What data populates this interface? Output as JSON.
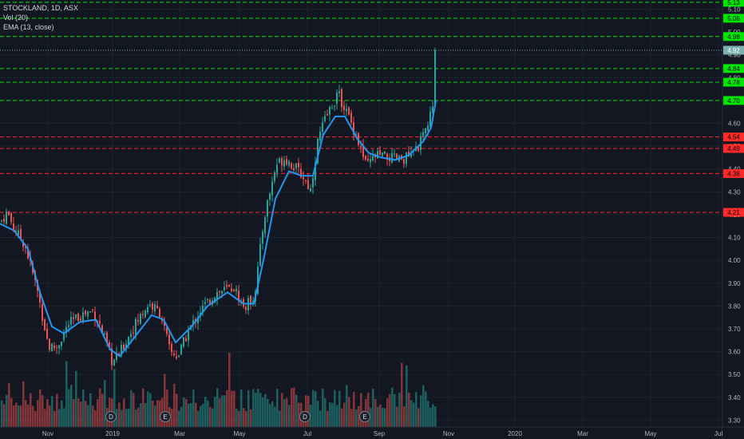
{
  "header": {
    "symbol_line": "STOCKLAND, 1D, ASX",
    "vol_label": "Vol (20)",
    "ema_label": "EMA (13, close)"
  },
  "colors": {
    "background": "#131722",
    "up": "#26a69a",
    "down": "#ef5350",
    "ema": "#2196f3",
    "resistance": "#00e600",
    "support": "#ff2a2a",
    "current": "#7fb0b0"
  },
  "chart_data": {
    "type": "candlestick",
    "ylim": [
      3.27,
      5.14
    ],
    "y_ticks": [
      "3.30",
      "3.40",
      "3.50",
      "3.60",
      "3.70",
      "3.80",
      "3.90",
      "4.00",
      "4.10",
      "4.20",
      "4.30",
      "4.40",
      "4.50",
      "4.60",
      "4.70",
      "4.80",
      "4.90",
      "5.00",
      "5.10"
    ],
    "x_ticks": [
      "Nov",
      "2019",
      "Mar",
      "May",
      "Jul",
      "Sep",
      "Nov",
      "2020",
      "Mar",
      "May",
      "Jul"
    ],
    "resistance_levels": [
      5.13,
      5.06,
      4.98,
      4.84,
      4.78,
      4.7
    ],
    "support_levels": [
      4.54,
      4.49,
      4.38,
      4.21
    ],
    "current_price": 4.92,
    "events": [
      "D",
      "E",
      "D",
      "E"
    ],
    "price_path": [
      [
        0,
        4.17
      ],
      [
        8,
        4.21
      ],
      [
        18,
        4.13
      ],
      [
        30,
        4.07
      ],
      [
        45,
        3.88
      ],
      [
        60,
        3.62
      ],
      [
        70,
        3.62
      ],
      [
        85,
        3.72
      ],
      [
        100,
        3.76
      ],
      [
        115,
        3.78
      ],
      [
        125,
        3.71
      ],
      [
        140,
        3.55
      ],
      [
        150,
        3.6
      ],
      [
        165,
        3.7
      ],
      [
        185,
        3.81
      ],
      [
        200,
        3.77
      ],
      [
        212,
        3.6
      ],
      [
        222,
        3.58
      ],
      [
        235,
        3.69
      ],
      [
        250,
        3.78
      ],
      [
        270,
        3.86
      ],
      [
        292,
        3.88
      ],
      [
        305,
        3.79
      ],
      [
        318,
        3.85
      ],
      [
        330,
        4.19
      ],
      [
        345,
        4.42
      ],
      [
        356,
        4.45
      ],
      [
        370,
        4.4
      ],
      [
        378,
        4.37
      ],
      [
        388,
        4.31
      ],
      [
        398,
        4.54
      ],
      [
        408,
        4.63
      ],
      [
        422,
        4.73
      ],
      [
        432,
        4.66
      ],
      [
        445,
        4.55
      ],
      [
        458,
        4.41
      ],
      [
        470,
        4.46
      ],
      [
        485,
        4.45
      ],
      [
        500,
        4.44
      ],
      [
        515,
        4.46
      ],
      [
        528,
        4.53
      ],
      [
        535,
        4.6
      ],
      [
        541,
        4.67
      ],
      [
        544,
        4.92
      ]
    ],
    "ema_path": [
      [
        0,
        4.16
      ],
      [
        18,
        4.13
      ],
      [
        35,
        4.05
      ],
      [
        50,
        3.86
      ],
      [
        65,
        3.71
      ],
      [
        80,
        3.68
      ],
      [
        100,
        3.73
      ],
      [
        120,
        3.74
      ],
      [
        138,
        3.61
      ],
      [
        150,
        3.58
      ],
      [
        170,
        3.67
      ],
      [
        190,
        3.76
      ],
      [
        205,
        3.74
      ],
      [
        220,
        3.64
      ],
      [
        240,
        3.71
      ],
      [
        260,
        3.8
      ],
      [
        285,
        3.86
      ],
      [
        305,
        3.81
      ],
      [
        318,
        3.81
      ],
      [
        330,
        4.0
      ],
      [
        345,
        4.27
      ],
      [
        362,
        4.39
      ],
      [
        378,
        4.37
      ],
      [
        392,
        4.37
      ],
      [
        405,
        4.55
      ],
      [
        420,
        4.63
      ],
      [
        432,
        4.63
      ],
      [
        448,
        4.53
      ],
      [
        462,
        4.47
      ],
      [
        478,
        4.45
      ],
      [
        495,
        4.44
      ],
      [
        512,
        4.46
      ],
      [
        530,
        4.52
      ],
      [
        540,
        4.58
      ],
      [
        546,
        4.7
      ]
    ]
  }
}
